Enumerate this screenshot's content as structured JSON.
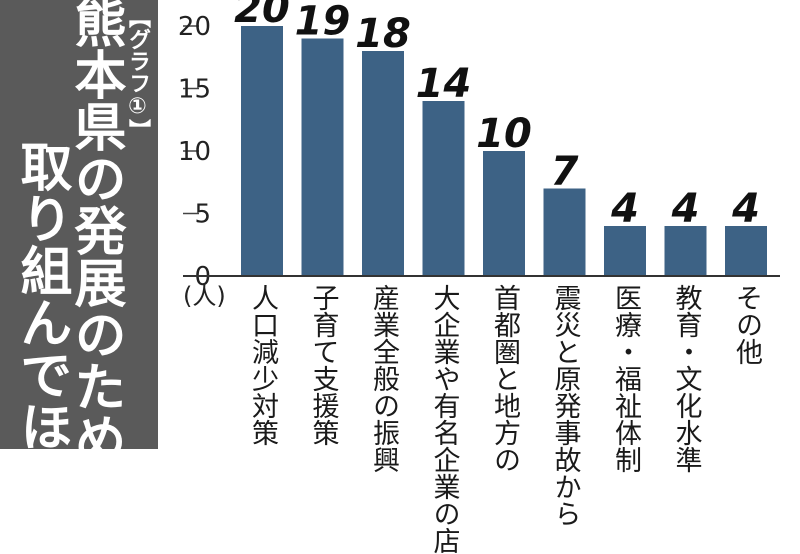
{
  "title": {
    "label": "【グラフ①】",
    "line1": "熊本県の発展のために",
    "line2": "取り組んでほしい"
  },
  "colors": {
    "bar": "#3d6285",
    "panel": "#5a5a5a",
    "axis": "#333333"
  },
  "chart_data": {
    "type": "bar",
    "categories": [
      "人口減少対策",
      "子育て支援策",
      "産業全般の振興",
      "大企業や有名企業の店",
      "首都圏と地方の",
      "震災と原発事故から",
      "医療・福祉体制",
      "教育・文化水準",
      "その他"
    ],
    "values": [
      20,
      19,
      18,
      14,
      10,
      7,
      4,
      4,
      4
    ],
    "ylim": [
      0,
      20
    ],
    "yticks": [
      0,
      5,
      10,
      15,
      20
    ],
    "unit": "(人)",
    "grid": false
  }
}
